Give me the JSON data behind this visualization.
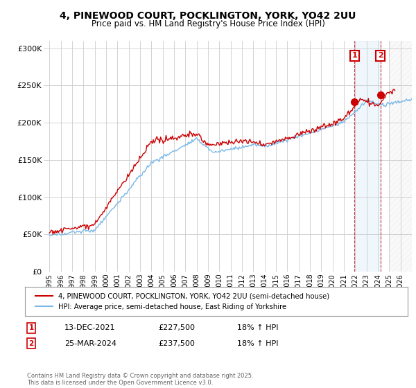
{
  "title": "4, PINEWOOD COURT, POCKLINGTON, YORK, YO42 2UU",
  "subtitle": "Price paid vs. HM Land Registry's House Price Index (HPI)",
  "legend_line1": "4, PINEWOOD COURT, POCKLINGTON, YORK, YO42 2UU (semi-detached house)",
  "legend_line2": "HPI: Average price, semi-detached house, East Riding of Yorkshire",
  "footnote": "Contains HM Land Registry data © Crown copyright and database right 2025.\nThis data is licensed under the Open Government Licence v3.0.",
  "sale1_date": "13-DEC-2021",
  "sale1_price": "£227,500",
  "sale1_hpi": "18% ↑ HPI",
  "sale2_date": "25-MAR-2024",
  "sale2_price": "£237,500",
  "sale2_hpi": "18% ↑ HPI",
  "hpi_color": "#7ab8e8",
  "price_color": "#cc0000",
  "background_color": "#ffffff",
  "grid_color": "#cccccc",
  "ylim": [
    0,
    310000
  ],
  "yticks": [
    0,
    50000,
    100000,
    150000,
    200000,
    250000,
    300000
  ],
  "ytick_labels": [
    "£0",
    "£50K",
    "£100K",
    "£150K",
    "£200K",
    "£250K",
    "£300K"
  ],
  "sale1_x": 2021.95,
  "sale1_y": 227500,
  "sale2_x": 2024.23,
  "sale2_y": 237500,
  "shade_start": 2021.95,
  "shade_end": 2024.23,
  "hatch_start": 2025.0,
  "xmin": 1995,
  "xmax": 2027
}
